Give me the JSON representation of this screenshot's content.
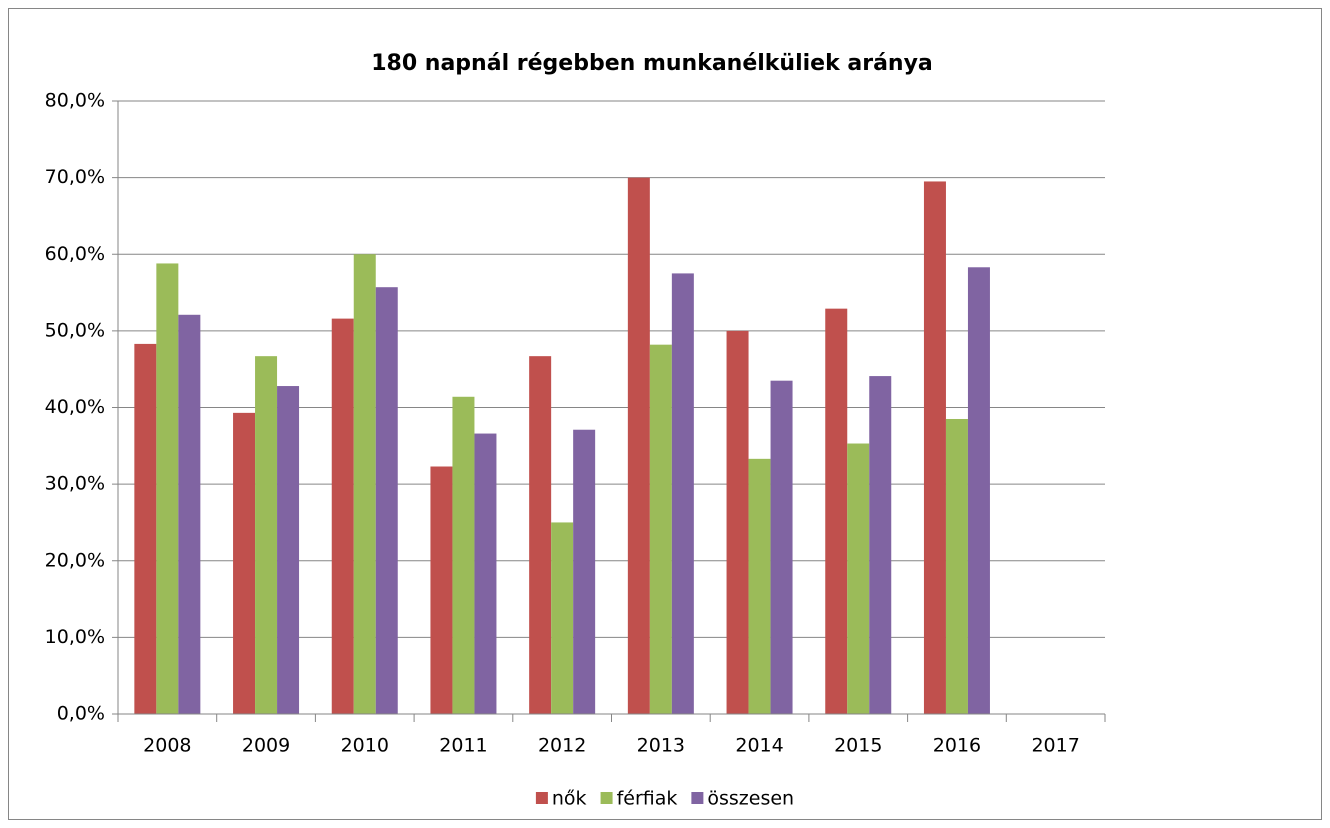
{
  "chart_data": {
    "type": "bar",
    "title": "180 napnál régebben munkanélküliek aránya",
    "categories": [
      "2008",
      "2009",
      "2010",
      "2011",
      "2012",
      "2013",
      "2014",
      "2015",
      "2016",
      "2017"
    ],
    "series": [
      {
        "name": "nők",
        "color": "#c0504d",
        "values": [
          48.3,
          39.3,
          51.6,
          32.3,
          46.7,
          70.0,
          50.0,
          52.9,
          69.5,
          null
        ]
      },
      {
        "name": "férfiak",
        "color": "#9bbb59",
        "values": [
          58.8,
          46.7,
          60.0,
          41.4,
          25.0,
          48.2,
          33.3,
          35.3,
          38.5,
          null
        ]
      },
      {
        "name": "összesen",
        "color": "#8064a2",
        "values": [
          52.1,
          42.8,
          55.7,
          36.6,
          37.1,
          57.5,
          43.5,
          44.1,
          58.3,
          null
        ]
      }
    ],
    "ylim": [
      0,
      80
    ],
    "yticks": [
      {
        "value": 0,
        "label": "0,0%"
      },
      {
        "value": 10,
        "label": "10,0%"
      },
      {
        "value": 20,
        "label": "20,0%"
      },
      {
        "value": 30,
        "label": "30,0%"
      },
      {
        "value": 40,
        "label": "40,0%"
      },
      {
        "value": 50,
        "label": "50,0%"
      },
      {
        "value": 60,
        "label": "60,0%"
      },
      {
        "value": 70,
        "label": "70,0%"
      },
      {
        "value": 80,
        "label": "80,0%"
      }
    ],
    "grid": true,
    "legend": "bottom"
  }
}
